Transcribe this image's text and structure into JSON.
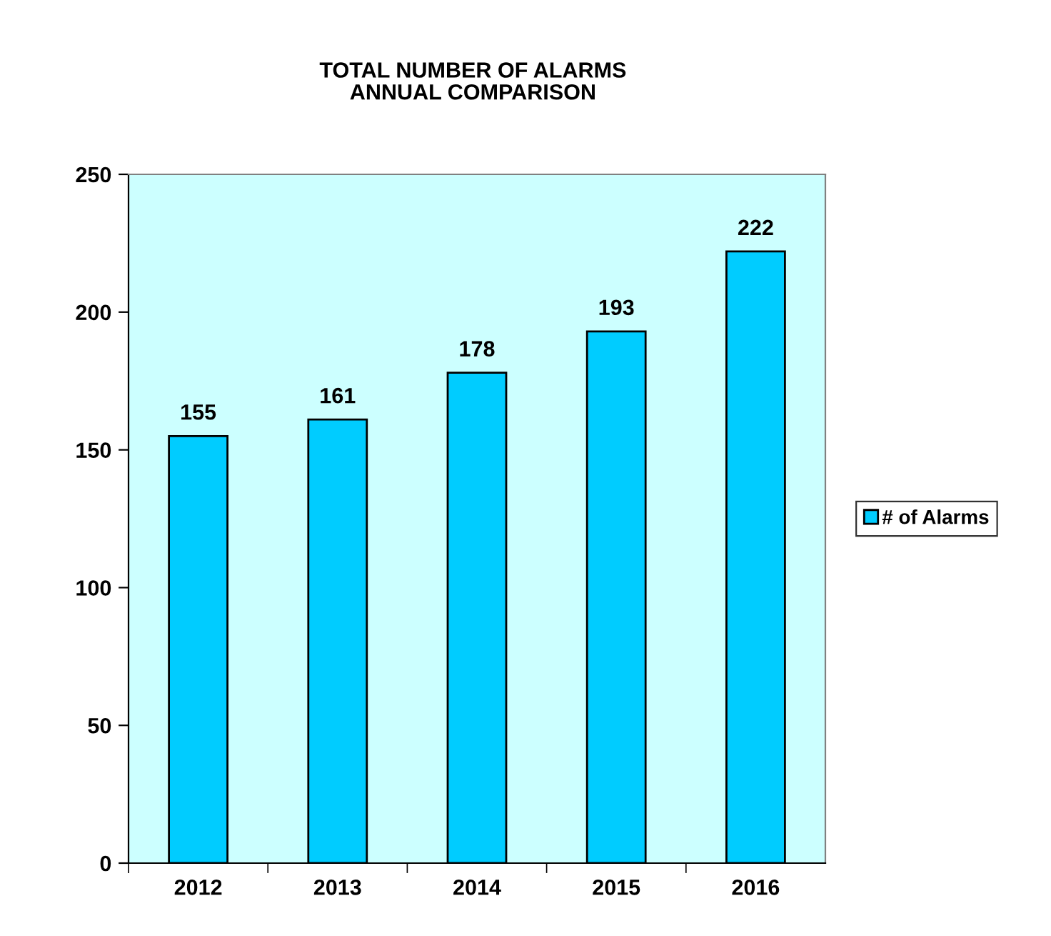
{
  "chart_data": {
    "type": "bar",
    "title": "TOTAL NUMBER OF ALARMS\nANNUAL COMPARISON",
    "categories": [
      "2012",
      "2013",
      "2014",
      "2015",
      "2016"
    ],
    "series": [
      {
        "name": "# of Alarms",
        "color": "#00ccff",
        "values": [
          155,
          161,
          178,
          193,
          222
        ]
      }
    ],
    "ylim": [
      0,
      250
    ],
    "yticks": [
      0,
      50,
      100,
      150,
      200,
      250
    ],
    "data_labels": true,
    "legend": "right",
    "grid": false
  }
}
